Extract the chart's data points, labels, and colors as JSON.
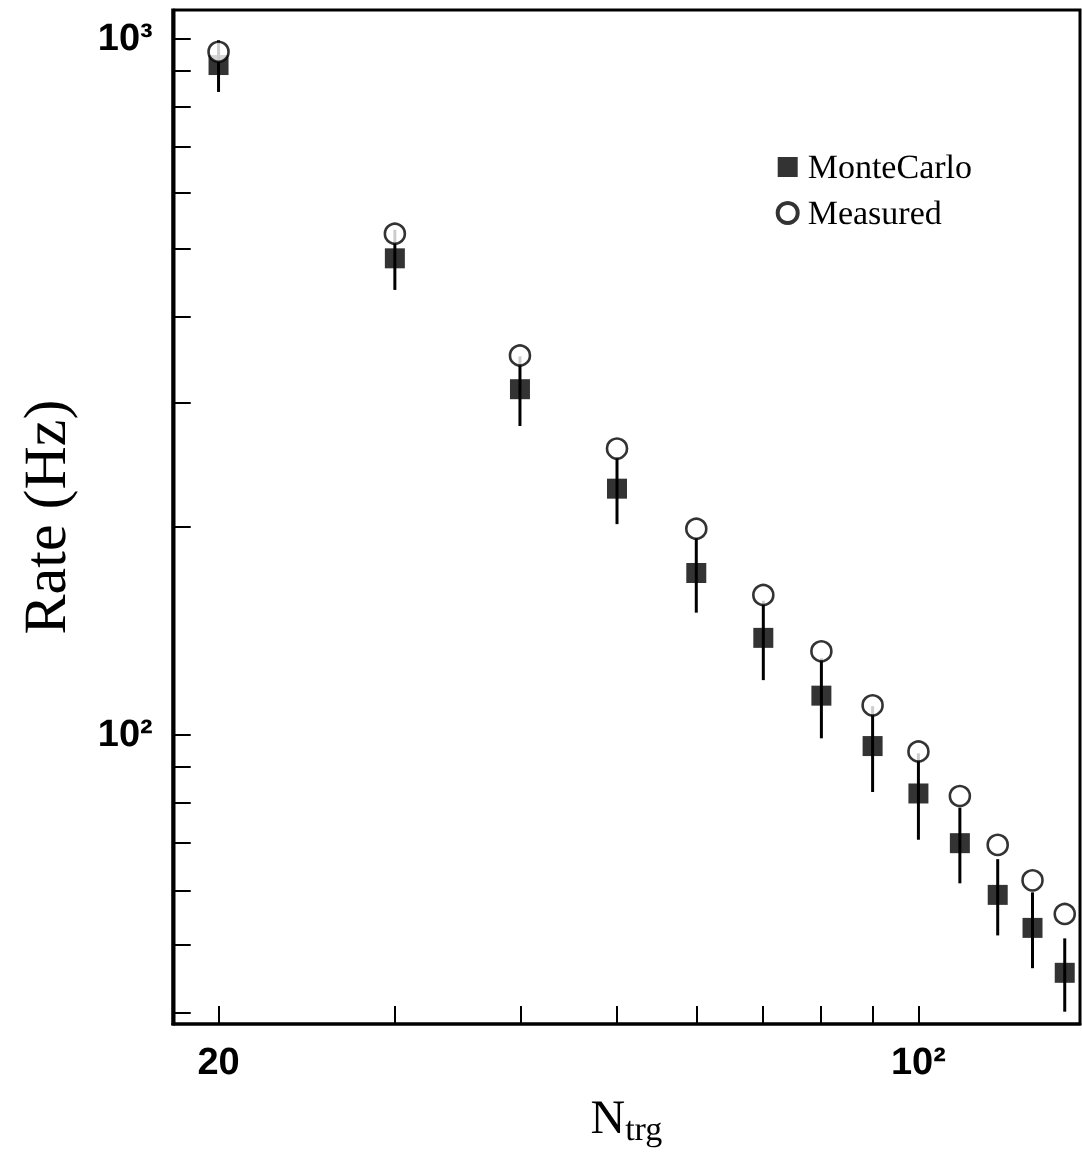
{
  "chart_data": {
    "type": "scatter",
    "xlabel": "N$_{trg}$",
    "ylabel": "Rate (Hz)",
    "x": [
      20,
      30,
      40,
      50,
      60,
      70,
      80,
      90,
      100,
      110,
      120,
      130,
      140
    ],
    "series": [
      {
        "name": "MonteCarlo",
        "color": "#000000",
        "marker": "square",
        "values": [
          917,
          484,
          314,
          226,
          171,
          138,
          114,
          96.5,
          82.5,
          70,
          59,
          52.9,
          45.6
        ],
        "errors": [
          78,
          48,
          36,
          25,
          21,
          18,
          15,
          13.6,
          11.7,
          8.7,
          7.4,
          6.6,
          5.5
        ]
      },
      {
        "name": "Measured",
        "color": "#000000",
        "marker": "circle",
        "values": [
          958,
          525,
          351,
          258,
          198,
          159,
          132,
          110.4,
          94.8,
          81.8,
          69.6,
          61.9,
          55.4
        ]
      }
    ],
    "log": "xy",
    "xlim": [
      18,
      145
    ],
    "ylim": [
      38.5,
      1100
    ],
    "xticks": [
      {
        "value": 20,
        "label": "20"
      },
      {
        "value": 30,
        "label": null
      },
      {
        "value": 40,
        "label": null
      },
      {
        "value": 50,
        "label": null
      },
      {
        "value": 60,
        "label": null
      },
      {
        "value": 70,
        "label": null
      },
      {
        "value": 80,
        "label": null
      },
      {
        "value": 90,
        "label": null
      },
      {
        "value": 100,
        "label": "10²"
      }
    ],
    "yticks": [
      {
        "value": 40,
        "label": null
      },
      {
        "value": 50,
        "label": null
      },
      {
        "value": 60,
        "label": null
      },
      {
        "value": 70,
        "label": null
      },
      {
        "value": 80,
        "label": null
      },
      {
        "value": 90,
        "label": null
      },
      {
        "value": 100,
        "label": "10²"
      },
      {
        "value": 200,
        "label": null
      },
      {
        "value": 300,
        "label": null
      },
      {
        "value": 400,
        "label": null
      },
      {
        "value": 500,
        "label": null
      },
      {
        "value": 600,
        "label": null
      },
      {
        "value": 700,
        "label": null
      },
      {
        "value": 800,
        "label": null
      },
      {
        "value": 900,
        "label": null
      },
      {
        "value": 1000,
        "label": "10³"
      }
    ],
    "legend": "top right"
  }
}
